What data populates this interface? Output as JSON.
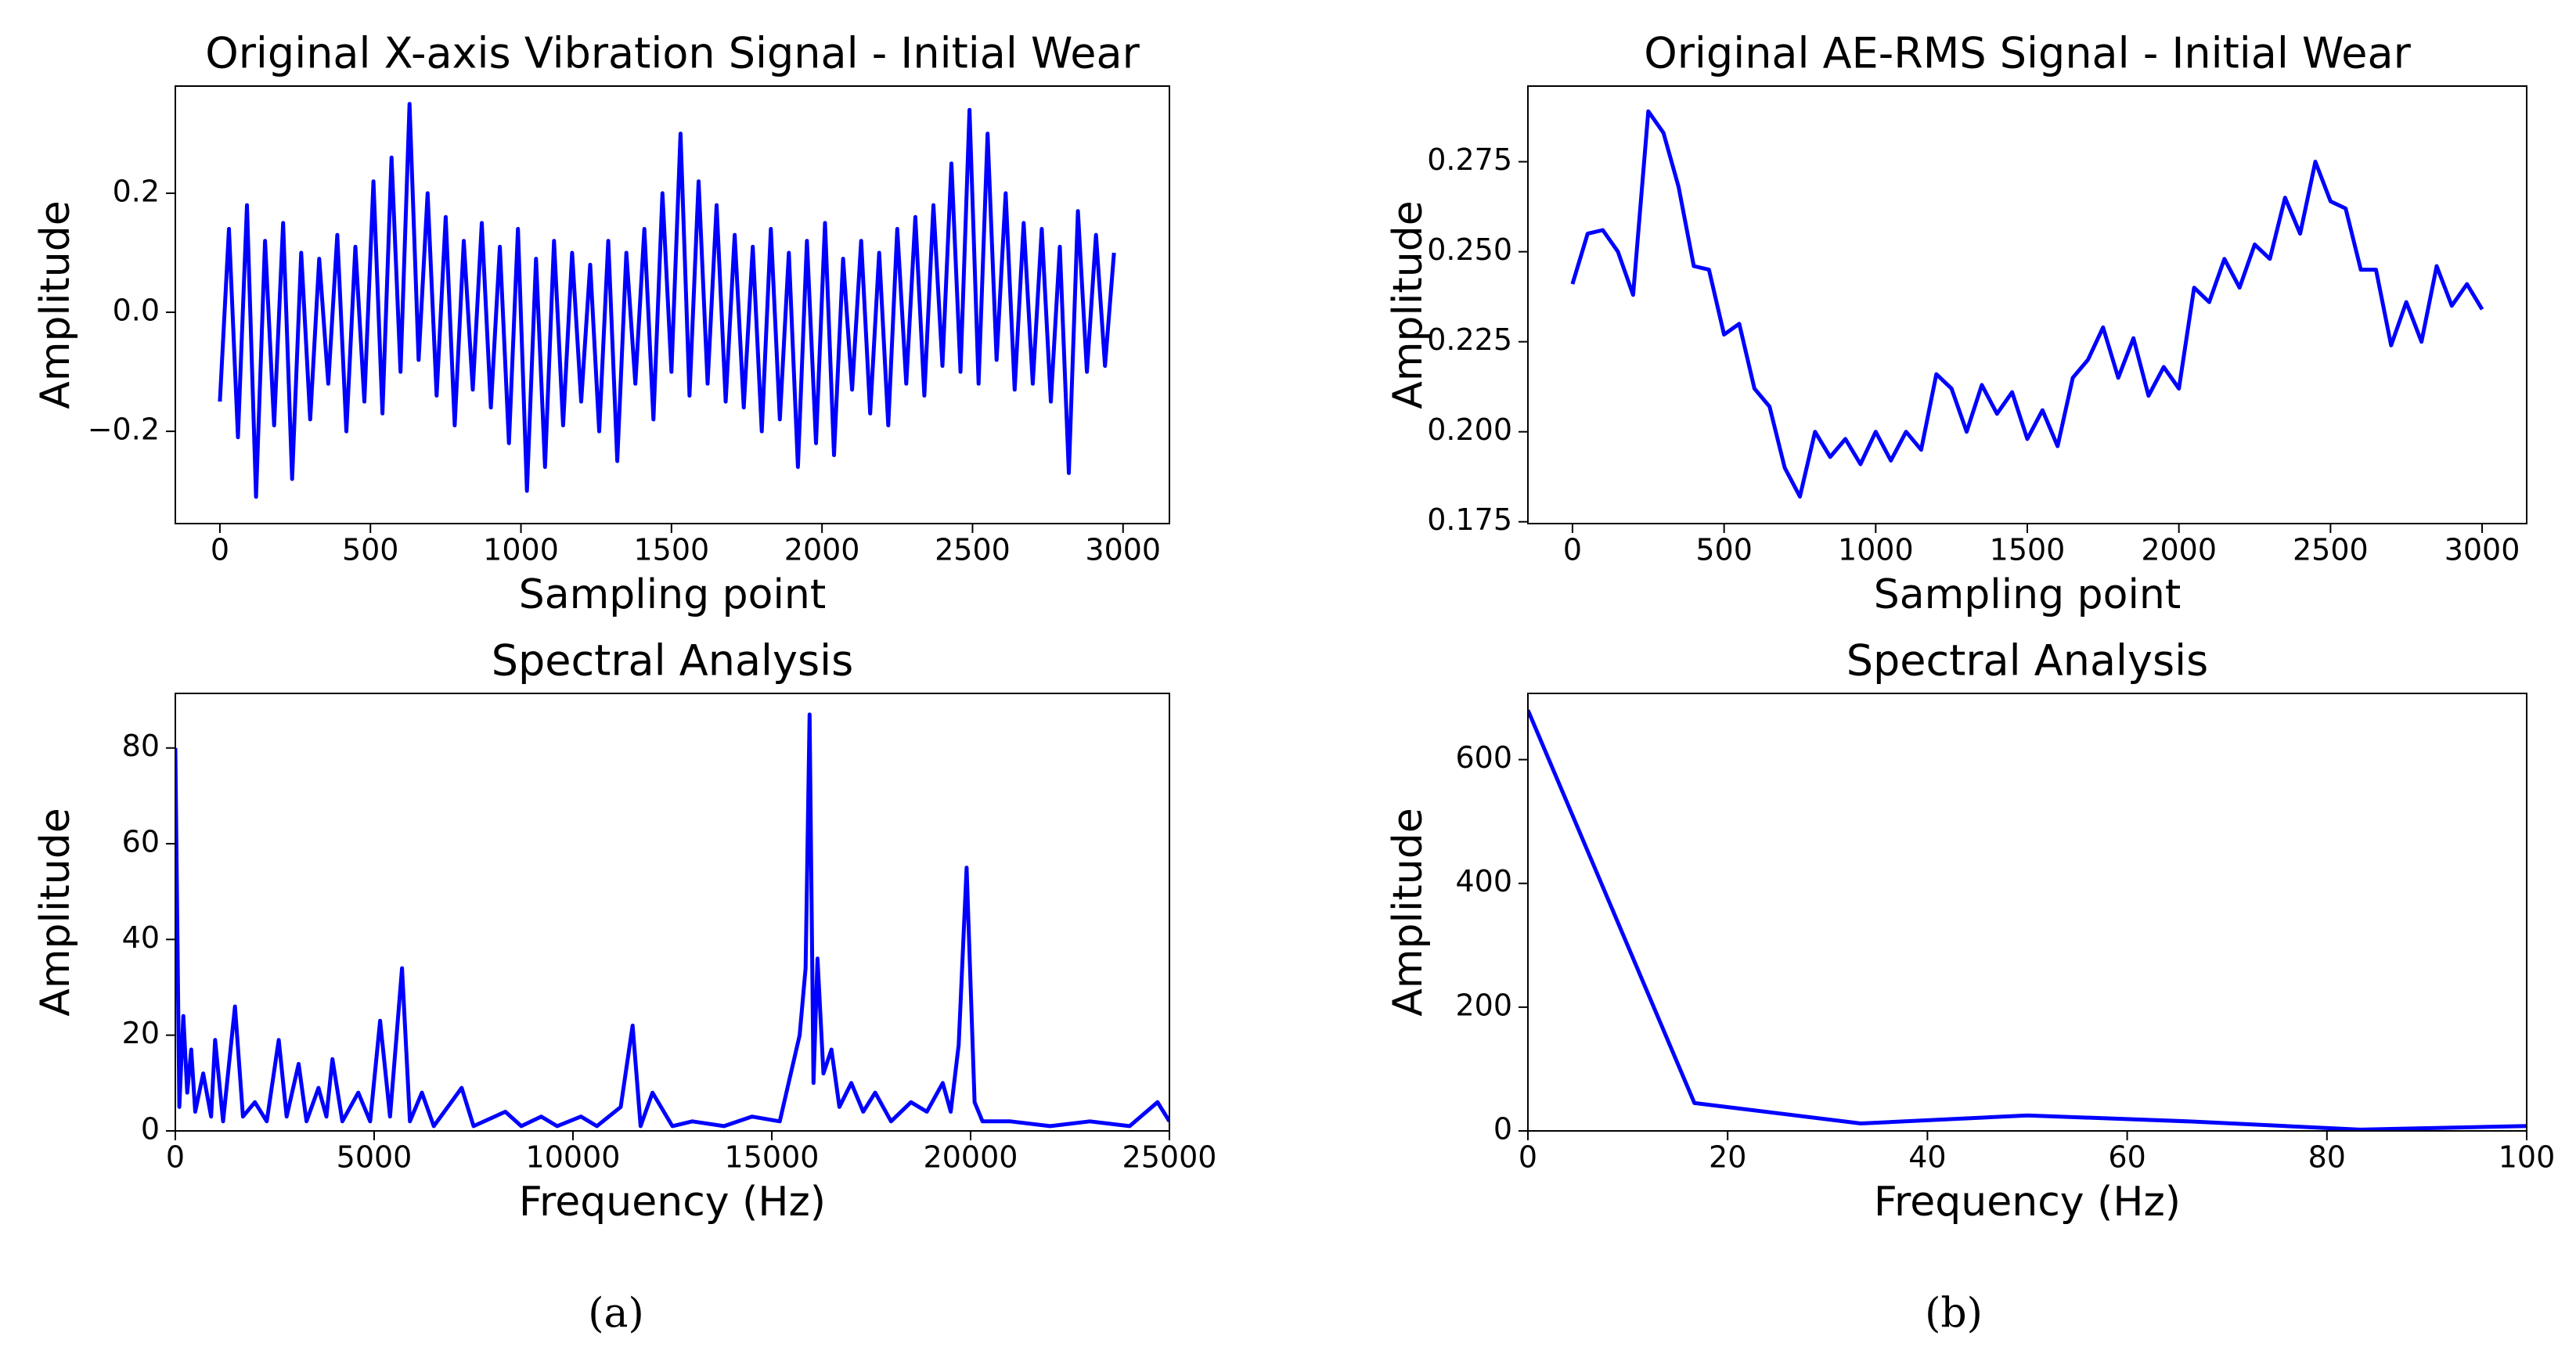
{
  "captions": [
    "(a)",
    "(b)"
  ],
  "chart_data": [
    {
      "type": "line",
      "title": "Original X-axis Vibration Signal - Initial Wear",
      "xlabel": "Sampling point",
      "ylabel": "Amplitude",
      "xlim": [
        -148,
        3154
      ],
      "ylim": [
        -0.355,
        0.38
      ],
      "xticks": [
        0,
        500,
        1000,
        1500,
        2000,
        2500,
        3000
      ],
      "yticks": [
        {
          "value": -0.2,
          "label": "−0.2"
        },
        {
          "value": 0,
          "label": "0.0"
        },
        0.2
      ],
      "series": [
        {
          "color": "#0000ff",
          "x": [
            0,
            30,
            60,
            90,
            120,
            150,
            180,
            210,
            240,
            270,
            300,
            330,
            360,
            390,
            420,
            450,
            480,
            510,
            540,
            570,
            600,
            630,
            660,
            690,
            720,
            750,
            780,
            810,
            840,
            870,
            900,
            930,
            960,
            990,
            1020,
            1050,
            1080,
            1110,
            1140,
            1170,
            1200,
            1230,
            1260,
            1290,
            1320,
            1350,
            1380,
            1410,
            1440,
            1470,
            1500,
            1530,
            1560,
            1590,
            1620,
            1650,
            1680,
            1710,
            1740,
            1770,
            1800,
            1830,
            1860,
            1890,
            1920,
            1950,
            1980,
            2010,
            2040,
            2070,
            2100,
            2130,
            2160,
            2190,
            2220,
            2250,
            2280,
            2310,
            2340,
            2370,
            2400,
            2430,
            2460,
            2490,
            2520,
            2550,
            2580,
            2610,
            2640,
            2670,
            2700,
            2730,
            2760,
            2790,
            2820,
            2850,
            2880,
            2910,
            2940,
            2970
          ],
          "values": [
            -0.15,
            0.14,
            -0.21,
            0.18,
            -0.31,
            0.12,
            -0.19,
            0.15,
            -0.28,
            0.1,
            -0.18,
            0.09,
            -0.12,
            0.13,
            -0.2,
            0.11,
            -0.15,
            0.22,
            -0.17,
            0.26,
            -0.1,
            0.35,
            -0.08,
            0.2,
            -0.14,
            0.16,
            -0.19,
            0.12,
            -0.13,
            0.15,
            -0.16,
            0.11,
            -0.22,
            0.14,
            -0.3,
            0.09,
            -0.26,
            0.12,
            -0.19,
            0.1,
            -0.15,
            0.08,
            -0.2,
            0.12,
            -0.25,
            0.1,
            -0.12,
            0.14,
            -0.18,
            0.2,
            -0.1,
            0.3,
            -0.14,
            0.22,
            -0.12,
            0.18,
            -0.15,
            0.13,
            -0.16,
            0.11,
            -0.2,
            0.14,
            -0.18,
            0.1,
            -0.26,
            0.12,
            -0.22,
            0.15,
            -0.24,
            0.09,
            -0.13,
            0.12,
            -0.17,
            0.1,
            -0.19,
            0.14,
            -0.12,
            0.16,
            -0.14,
            0.18,
            -0.09,
            0.25,
            -0.1,
            0.34,
            -0.12,
            0.3,
            -0.08,
            0.2,
            -0.13,
            0.15,
            -0.12,
            0.14,
            -0.15,
            0.11,
            -0.27,
            0.17,
            -0.1,
            0.13,
            -0.09,
            0.1
          ]
        }
      ]
    },
    {
      "type": "line",
      "title": "Original AE-RMS Signal - Initial Wear",
      "xlabel": "Sampling point",
      "ylabel": "Amplitude",
      "xlim": [
        -147,
        3147
      ],
      "ylim": [
        0.1745,
        0.296
      ],
      "xticks": [
        0,
        500,
        1000,
        1500,
        2000,
        2500,
        3000
      ],
      "yticks": [
        0.175,
        {
          "value": 0.2,
          "label": "0.200"
        },
        0.225,
        {
          "value": 0.25,
          "label": "0.250"
        },
        0.275
      ],
      "series": [
        {
          "color": "#0000ff",
          "x": [
            0,
            50,
            100,
            150,
            200,
            250,
            300,
            350,
            400,
            450,
            500,
            550,
            600,
            650,
            700,
            750,
            800,
            850,
            900,
            950,
            1000,
            1050,
            1100,
            1150,
            1200,
            1250,
            1300,
            1350,
            1400,
            1450,
            1500,
            1550,
            1600,
            1650,
            1700,
            1750,
            1800,
            1850,
            1900,
            1950,
            2000,
            2050,
            2100,
            2150,
            2200,
            2250,
            2300,
            2350,
            2400,
            2450,
            2500,
            2550,
            2600,
            2650,
            2700,
            2750,
            2800,
            2850,
            2900,
            2950,
            3000
          ],
          "values": [
            0.241,
            0.255,
            0.256,
            0.25,
            0.238,
            0.289,
            0.283,
            0.268,
            0.246,
            0.245,
            0.227,
            0.23,
            0.212,
            0.207,
            0.19,
            0.182,
            0.2,
            0.193,
            0.198,
            0.191,
            0.2,
            0.192,
            0.2,
            0.195,
            0.216,
            0.212,
            0.2,
            0.213,
            0.205,
            0.211,
            0.198,
            0.206,
            0.196,
            0.215,
            0.22,
            0.229,
            0.215,
            0.226,
            0.21,
            0.218,
            0.212,
            0.24,
            0.236,
            0.248,
            0.24,
            0.252,
            0.248,
            0.265,
            0.255,
            0.275,
            0.264,
            0.262,
            0.245,
            0.245,
            0.224,
            0.236,
            0.225,
            0.246,
            0.235,
            0.241,
            0.234
          ]
        }
      ]
    },
    {
      "type": "line",
      "title": "Spectral Analysis",
      "xlabel": "Frequency (Hz)",
      "ylabel": "Amplitude",
      "xlim": [
        0,
        25000
      ],
      "ylim": [
        0,
        91.4
      ],
      "xticks": [
        0,
        5000,
        10000,
        15000,
        20000,
        25000
      ],
      "yticks": [
        0,
        20,
        40,
        60,
        80
      ],
      "series": [
        {
          "color": "#0000ff",
          "x": [
            0,
            100,
            200,
            300,
            400,
            500,
            700,
            900,
            1000,
            1200,
            1500,
            1700,
            2000,
            2300,
            2600,
            2800,
            3100,
            3300,
            3600,
            3800,
            3950,
            4200,
            4600,
            4900,
            5150,
            5400,
            5700,
            5900,
            6200,
            6500,
            7200,
            7500,
            8300,
            8700,
            9200,
            9600,
            10200,
            10600,
            11200,
            11500,
            11700,
            12000,
            12500,
            13000,
            13800,
            14500,
            15200,
            15700,
            15850,
            15950,
            16050,
            16150,
            16300,
            16500,
            16700,
            17000,
            17300,
            17600,
            18000,
            18500,
            18900,
            19300,
            19500,
            19700,
            19900,
            20100,
            20300,
            21000,
            22000,
            23000,
            24000,
            24700,
            25000
          ],
          "values": [
            80,
            5,
            24,
            8,
            17,
            4,
            12,
            3,
            19,
            2,
            26,
            3,
            6,
            2,
            19,
            3,
            14,
            2,
            9,
            3,
            15,
            2,
            8,
            2,
            23,
            3,
            34,
            2,
            8,
            1,
            9,
            1,
            4,
            1,
            3,
            1,
            3,
            1,
            5,
            22,
            1,
            8,
            1,
            2,
            1,
            3,
            2,
            20,
            34,
            87,
            10,
            36,
            12,
            17,
            5,
            10,
            4,
            8,
            2,
            6,
            4,
            10,
            4,
            18,
            55,
            6,
            2,
            2,
            1,
            2,
            1,
            6,
            2
          ]
        }
      ]
    },
    {
      "type": "line",
      "title": "Spectral Analysis",
      "xlabel": "Frequency (Hz)",
      "ylabel": "Amplitude",
      "xlim": [
        0,
        100
      ],
      "ylim": [
        0,
        707
      ],
      "xticks": [
        0,
        20,
        40,
        60,
        80,
        100
      ],
      "yticks": [
        0,
        200,
        400,
        600
      ],
      "series": [
        {
          "color": "#0000ff",
          "x": [
            0,
            16.67,
            33.33,
            50,
            66.67,
            83.33,
            100
          ],
          "values": [
            680,
            45,
            12,
            25,
            15,
            2,
            8
          ]
        }
      ]
    }
  ]
}
